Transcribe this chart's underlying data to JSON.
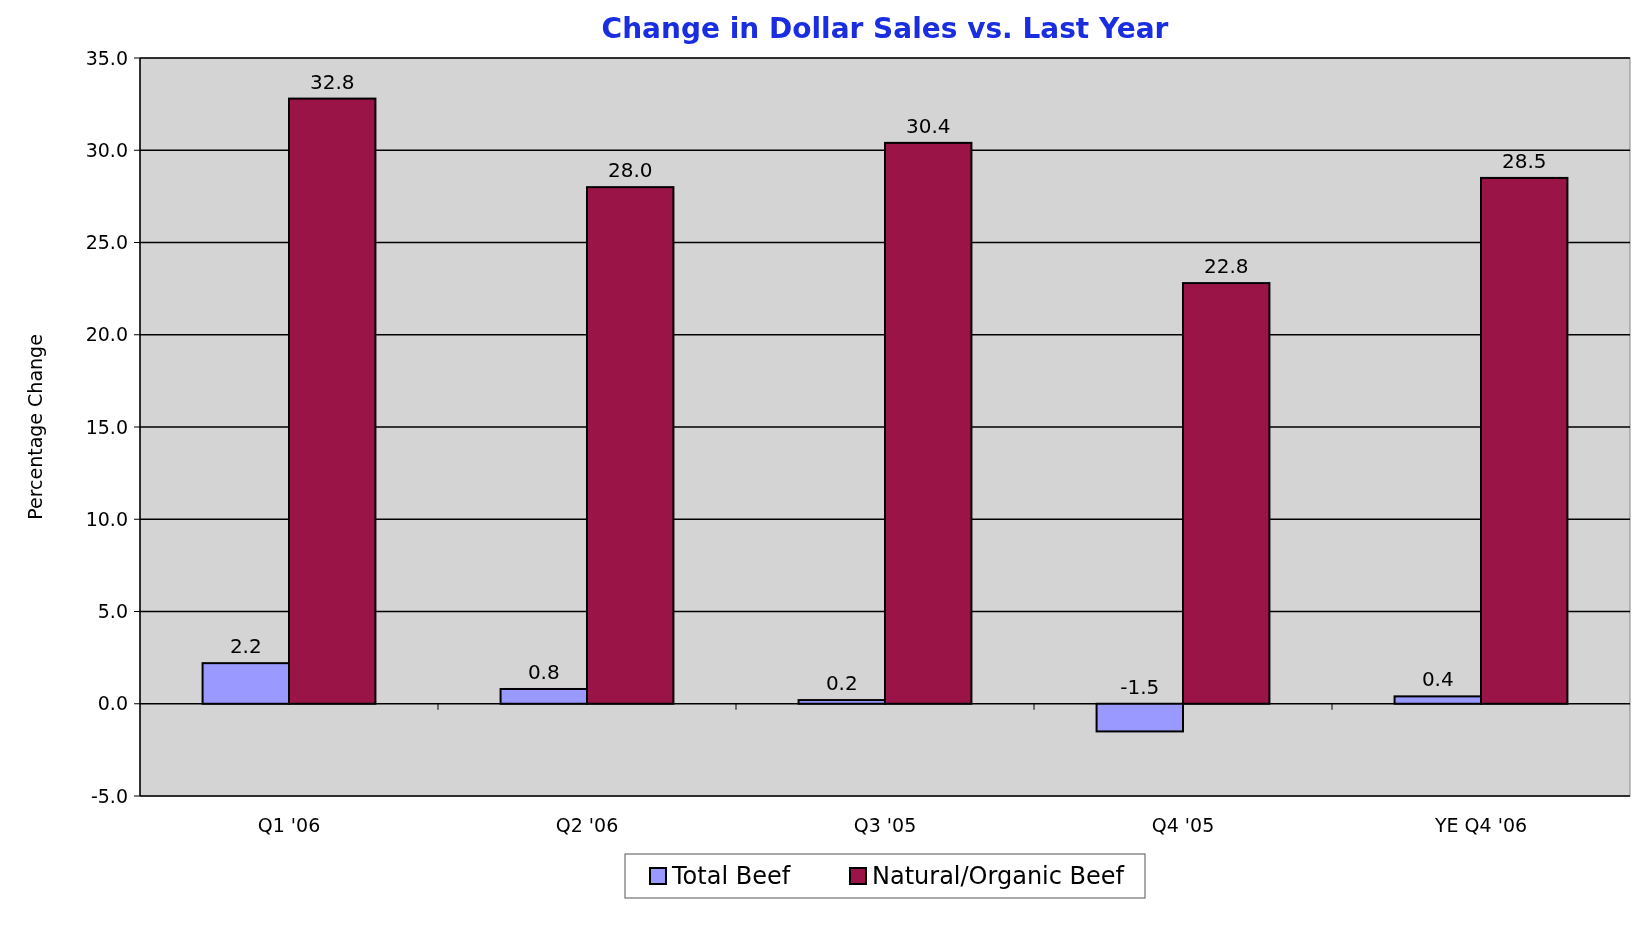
{
  "chart_data": {
    "type": "bar",
    "title": "Change in Dollar Sales vs. Last Year",
    "ylabel": "Percentage Change",
    "categories": [
      "Q1 '06",
      "Q2 '06",
      "Q3 '05",
      "Q4 '05",
      "YE Q4 '06"
    ],
    "series": [
      {
        "name": "Total Beef",
        "color": "#9999ff",
        "values": [
          2.2,
          0.8,
          0.2,
          -1.5,
          0.4
        ]
      },
      {
        "name": "Natural/Organic Beef",
        "color": "#9a1448",
        "values": [
          32.8,
          28.0,
          30.4,
          22.8,
          28.5
        ]
      }
    ],
    "ylim": [
      -5,
      35
    ],
    "yticks": [
      {
        "value": -5,
        "label": "-5.0"
      },
      {
        "value": 0,
        "label": "0.0"
      },
      {
        "value": 5,
        "label": "5.0"
      },
      {
        "value": 10,
        "label": "10.0"
      },
      {
        "value": 15,
        "label": "15.0"
      },
      {
        "value": 20,
        "label": "20.0"
      },
      {
        "value": 25,
        "label": "25.0"
      },
      {
        "value": 30,
        "label": "30.0"
      },
      {
        "value": 35,
        "label": "35.0"
      }
    ],
    "value_labels": [
      [
        "2.2",
        "0.8",
        "0.2",
        "-1.5",
        "0.4"
      ],
      [
        "32.8",
        "28.0",
        "30.4",
        "22.8",
        "28.5"
      ]
    ],
    "grid": "y",
    "legend": "bottom"
  }
}
